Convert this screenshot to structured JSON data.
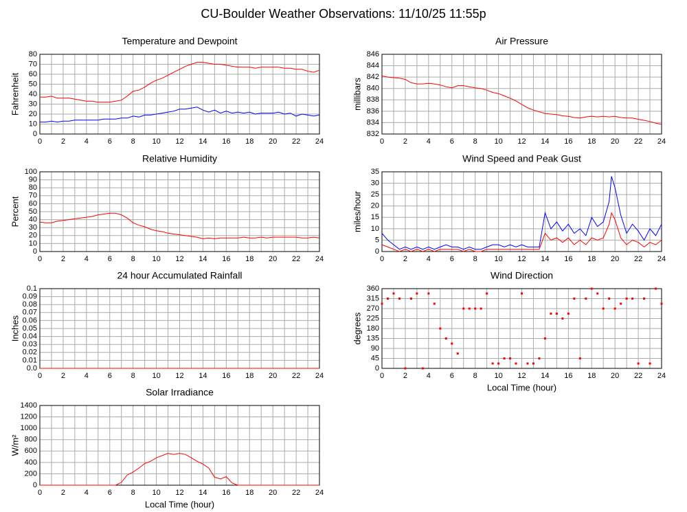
{
  "title": "CU-Boulder Weather Observations: 11/10/25 11:55p",
  "chart_data": [
    {
      "type": "line",
      "title": "Temperature and Dewpoint",
      "ylabel": "Fahrenheit",
      "grid": true,
      "xlim": [
        0,
        24
      ],
      "xticks": [
        0,
        2,
        4,
        6,
        8,
        10,
        12,
        14,
        16,
        18,
        20,
        22,
        24
      ],
      "ylim": [
        0,
        80
      ],
      "yticks": [
        0,
        10,
        20,
        30,
        40,
        50,
        60,
        70,
        80
      ],
      "x": [
        0,
        0.5,
        1,
        1.5,
        2,
        2.5,
        3,
        3.5,
        4,
        4.5,
        5,
        5.5,
        6,
        6.5,
        7,
        7.5,
        8,
        8.5,
        9,
        9.5,
        10,
        10.5,
        11,
        11.5,
        12,
        12.5,
        13,
        13.5,
        14,
        14.5,
        15,
        15.5,
        16,
        16.5,
        17,
        17.5,
        18,
        18.5,
        19,
        19.5,
        20,
        20.5,
        21,
        21.5,
        22,
        22.5,
        23,
        23.5,
        24
      ],
      "series": [
        {
          "color": "#ff0000",
          "values": [
            37,
            37,
            38,
            36,
            36,
            36,
            35,
            34,
            33,
            33,
            32,
            32,
            32,
            33,
            34,
            38,
            43,
            44,
            47,
            51,
            54,
            56,
            59,
            62,
            65,
            68,
            70,
            72,
            72,
            71,
            70,
            70,
            69,
            68,
            67,
            67,
            67,
            66,
            67,
            67,
            67,
            67,
            66,
            66,
            65,
            65,
            63,
            62,
            64
          ]
        },
        {
          "color": "#0000ff",
          "values": [
            12,
            12,
            13,
            12,
            13,
            13,
            14,
            14,
            14,
            14,
            14,
            15,
            15,
            15,
            16,
            16,
            18,
            17,
            19,
            19,
            20,
            21,
            22,
            23,
            25,
            25,
            26,
            27,
            24,
            22,
            24,
            21,
            23,
            21,
            22,
            21,
            22,
            20,
            21,
            21,
            21,
            22,
            20,
            21,
            18,
            20,
            19,
            18,
            19
          ]
        }
      ]
    },
    {
      "type": "line",
      "title": "Air Pressure",
      "ylabel": "millibars",
      "grid": true,
      "xlim": [
        0,
        24
      ],
      "xticks": [
        0,
        2,
        4,
        6,
        8,
        10,
        12,
        14,
        16,
        18,
        20,
        22,
        24
      ],
      "ylim": [
        832,
        846
      ],
      "yticks": [
        832,
        834,
        836,
        838,
        840,
        842,
        844,
        846
      ],
      "x": [
        0,
        0.5,
        1,
        1.5,
        2,
        2.5,
        3,
        3.5,
        4,
        4.5,
        5,
        5.5,
        6,
        6.5,
        7,
        7.5,
        8,
        8.5,
        9,
        9.5,
        10,
        10.5,
        11,
        11.5,
        12,
        12.5,
        13,
        13.5,
        14,
        14.5,
        15,
        15.5,
        16,
        16.5,
        17,
        17.5,
        18,
        18.5,
        19,
        19.5,
        20,
        20.5,
        21,
        21.5,
        22,
        22.5,
        23,
        23.5,
        24
      ],
      "series": [
        {
          "color": "#ff0000",
          "values": [
            842.2,
            842,
            841.9,
            841.8,
            841.6,
            841,
            840.8,
            840.8,
            840.9,
            840.8,
            840.6,
            840.3,
            840.1,
            840.5,
            840.5,
            840.3,
            840.1,
            840,
            839.7,
            839.3,
            839.1,
            838.7,
            838.3,
            837.8,
            837.2,
            836.6,
            836.2,
            835.9,
            835.6,
            835.5,
            835.4,
            835.2,
            835.1,
            834.9,
            834.8,
            835,
            835.1,
            835,
            835.1,
            835,
            835.1,
            834.9,
            834.8,
            834.8,
            834.6,
            834.4,
            834.2,
            833.9,
            833.7
          ]
        }
      ]
    },
    {
      "type": "line",
      "title": "Relative Humidity",
      "ylabel": "Percent",
      "grid": true,
      "xlim": [
        0,
        24
      ],
      "xticks": [
        0,
        2,
        4,
        6,
        8,
        10,
        12,
        14,
        16,
        18,
        20,
        22,
        24
      ],
      "ylim": [
        0,
        100
      ],
      "yticks": [
        0,
        10,
        20,
        30,
        40,
        50,
        60,
        70,
        80,
        90,
        100
      ],
      "x": [
        0,
        0.5,
        1,
        1.5,
        2,
        2.5,
        3,
        3.5,
        4,
        4.5,
        5,
        5.5,
        6,
        6.5,
        7,
        7.5,
        8,
        8.5,
        9,
        9.5,
        10,
        10.5,
        11,
        11.5,
        12,
        12.5,
        13,
        13.5,
        14,
        14.5,
        15,
        15.5,
        16,
        16.5,
        17,
        17.5,
        18,
        18.5,
        19,
        19.5,
        20,
        20.5,
        21,
        21.5,
        22,
        22.5,
        23,
        23.5,
        24
      ],
      "series": [
        {
          "color": "#ff0000",
          "values": [
            37,
            36,
            36,
            38,
            39,
            40,
            41,
            42,
            43,
            44,
            46,
            47,
            48,
            48,
            46,
            42,
            36,
            33,
            31,
            28,
            26,
            25,
            23,
            22,
            21,
            20,
            19,
            18,
            16,
            17,
            16,
            17,
            17,
            17,
            17,
            18,
            17,
            17,
            18,
            17,
            18,
            18,
            18,
            18,
            18,
            17,
            17,
            18,
            17
          ]
        }
      ]
    },
    {
      "type": "line",
      "title": "Wind Speed and Peak Gust",
      "ylabel": "miles/hour",
      "grid": true,
      "xlim": [
        0,
        24
      ],
      "xticks": [
        0,
        2,
        4,
        6,
        8,
        10,
        12,
        14,
        16,
        18,
        20,
        22,
        24
      ],
      "ylim": [
        0,
        35
      ],
      "yticks": [
        0,
        5,
        10,
        15,
        20,
        25,
        30,
        35
      ],
      "x": [
        0,
        0.5,
        1,
        1.5,
        2,
        2.5,
        3,
        3.5,
        4,
        4.5,
        5,
        5.5,
        6,
        6.5,
        7,
        7.5,
        8,
        8.5,
        9,
        9.5,
        10,
        10.5,
        11,
        11.5,
        12,
        12.5,
        13,
        13.5,
        14,
        14.5,
        15,
        15.5,
        16,
        16.5,
        17,
        17.5,
        18,
        18.5,
        19,
        19.5,
        19.7,
        20,
        20.5,
        21,
        21.5,
        22,
        22.5,
        23,
        23.5,
        24
      ],
      "series": [
        {
          "color": "#0000ff",
          "values": [
            8,
            5,
            3,
            1,
            2,
            1,
            2,
            1,
            2,
            1,
            2,
            3,
            2,
            2,
            1,
            2,
            1,
            1,
            2,
            3,
            3,
            2,
            3,
            2,
            3,
            2,
            2,
            2,
            17,
            10,
            13,
            9,
            12,
            8,
            10,
            7,
            15,
            11,
            13,
            22,
            33,
            28,
            16,
            8,
            12,
            9,
            5,
            10,
            7,
            12
          ]
        },
        {
          "color": "#ff0000",
          "values": [
            3,
            2,
            1,
            0,
            1,
            0,
            1,
            0,
            1,
            0,
            1,
            1,
            1,
            1,
            0,
            1,
            0,
            0,
            1,
            1,
            1,
            1,
            1,
            1,
            1,
            1,
            1,
            1,
            8,
            5,
            6,
            4,
            6,
            3,
            5,
            3,
            6,
            5,
            6,
            12,
            17,
            14,
            6,
            3,
            5,
            4,
            2,
            4,
            3,
            5
          ]
        }
      ]
    },
    {
      "type": "line",
      "title": "24 hour Accumulated Rainfall",
      "ylabel": "Inches",
      "grid": true,
      "xlim": [
        0,
        24
      ],
      "xticks": [
        0,
        2,
        4,
        6,
        8,
        10,
        12,
        14,
        16,
        18,
        20,
        22,
        24
      ],
      "ylim": [
        0,
        0.1
      ],
      "yticks": [
        {
          "value": 0,
          "label": "0.0"
        },
        0.01,
        0.02,
        0.03,
        0.04,
        0.05,
        0.06,
        0.07,
        0.08,
        0.09,
        0.1
      ],
      "x": [
        0,
        24
      ],
      "series": [
        {
          "color": "#ff0000",
          "values": [
            0,
            0
          ]
        }
      ]
    },
    {
      "type": "scatter",
      "title": "Wind Direction",
      "ylabel": "degrees",
      "xlabel": "Local Time (hour)",
      "grid": true,
      "xlim": [
        0,
        24
      ],
      "xticks": [
        0,
        2,
        4,
        6,
        8,
        10,
        12,
        14,
        16,
        18,
        20,
        22,
        24
      ],
      "ylim": [
        0,
        360
      ],
      "yticks": [
        0,
        45,
        90,
        135,
        180,
        225,
        270,
        315,
        360
      ],
      "x": [
        0,
        0.5,
        1,
        1.5,
        2,
        2.5,
        3,
        3.5,
        4,
        4.5,
        5,
        5.5,
        6,
        6.5,
        7,
        7.5,
        8,
        8.5,
        9,
        9.5,
        10,
        10.5,
        11,
        11.5,
        12,
        12.5,
        13,
        13.5,
        14,
        14.5,
        15,
        15.5,
        16,
        16.5,
        17,
        17.5,
        18,
        18.5,
        19,
        19.5,
        20,
        20.5,
        21,
        21.5,
        22,
        22.5,
        23,
        23.5,
        24
      ],
      "series": [
        {
          "color": "#ff0000",
          "values": [
            292,
            315,
            338,
            315,
            0,
            315,
            338,
            0,
            338,
            292,
            180,
            135,
            112,
            67,
            270,
            270,
            270,
            270,
            338,
            22,
            22,
            45,
            45,
            22,
            338,
            22,
            22,
            45,
            135,
            247,
            247,
            225,
            247,
            315,
            45,
            315,
            360,
            338,
            270,
            315,
            270,
            292,
            315,
            315,
            22,
            315,
            22,
            360,
            292
          ]
        }
      ]
    },
    {
      "type": "line",
      "title": "Solar Irradiance",
      "ylabel": "W/m²",
      "xlabel": "Local Time (hour)",
      "grid": true,
      "xlim": [
        0,
        24
      ],
      "xticks": [
        0,
        2,
        4,
        6,
        8,
        10,
        12,
        14,
        16,
        18,
        20,
        22,
        24
      ],
      "ylim": [
        0,
        1400
      ],
      "yticks": [
        0,
        200,
        400,
        600,
        800,
        1000,
        1200,
        1400
      ],
      "x": [
        0,
        0.5,
        1,
        1.5,
        2,
        2.5,
        3,
        3.5,
        4,
        4.5,
        5,
        5.5,
        6,
        6.5,
        7,
        7.5,
        8,
        8.5,
        9,
        9.5,
        10,
        10.5,
        11,
        11.5,
        12,
        12.5,
        13,
        13.5,
        14,
        14.5,
        15,
        15.5,
        16,
        16.5,
        17,
        17.5,
        18,
        18.5,
        19,
        19.5,
        20,
        20.5,
        21,
        21.5,
        22,
        22.5,
        23,
        23.5,
        24
      ],
      "series": [
        {
          "color": "#ff0000",
          "values": [
            0,
            0,
            0,
            0,
            0,
            0,
            0,
            0,
            0,
            0,
            0,
            0,
            0,
            0,
            50,
            180,
            230,
            300,
            380,
            420,
            480,
            520,
            560,
            540,
            560,
            540,
            480,
            420,
            370,
            300,
            140,
            110,
            150,
            40,
            0,
            0,
            0,
            0,
            0,
            0,
            0,
            0,
            0,
            0,
            0,
            0,
            0,
            0,
            0
          ]
        }
      ]
    }
  ]
}
